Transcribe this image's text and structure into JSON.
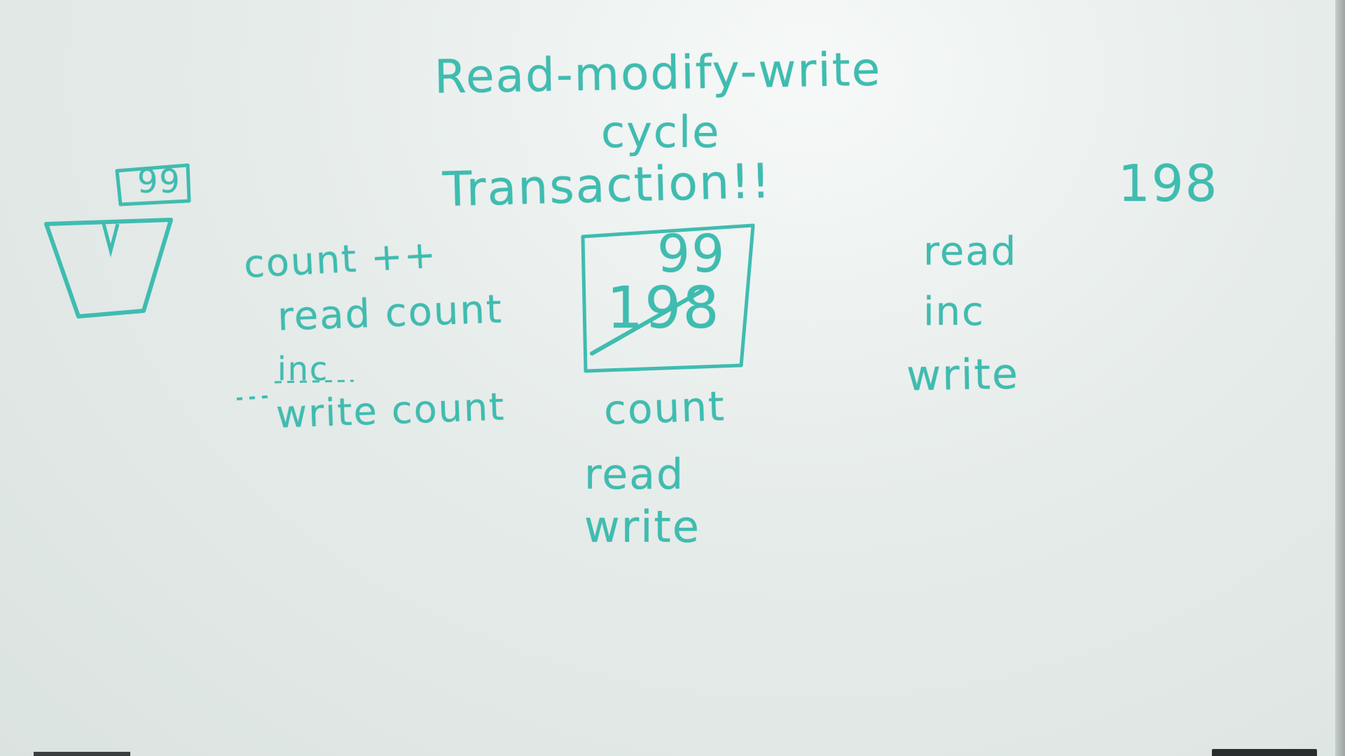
{
  "title": {
    "line1": "Read-modify-write",
    "line2": "cycle",
    "line3": "Transaction!!"
  },
  "left_diagram": {
    "label": "99"
  },
  "left_steps": {
    "heading": "count ++",
    "step1": "read count",
    "step2": "inc",
    "step3": "write count"
  },
  "center_box": {
    "top_value": "99",
    "crossed_value": "198"
  },
  "center_labels": {
    "name": "count",
    "op1": "read",
    "op2": "write"
  },
  "right_steps": {
    "op1": "read",
    "op2": "inc",
    "op3": "write"
  },
  "right_number": "198",
  "ink_color": "#3fbcb0"
}
